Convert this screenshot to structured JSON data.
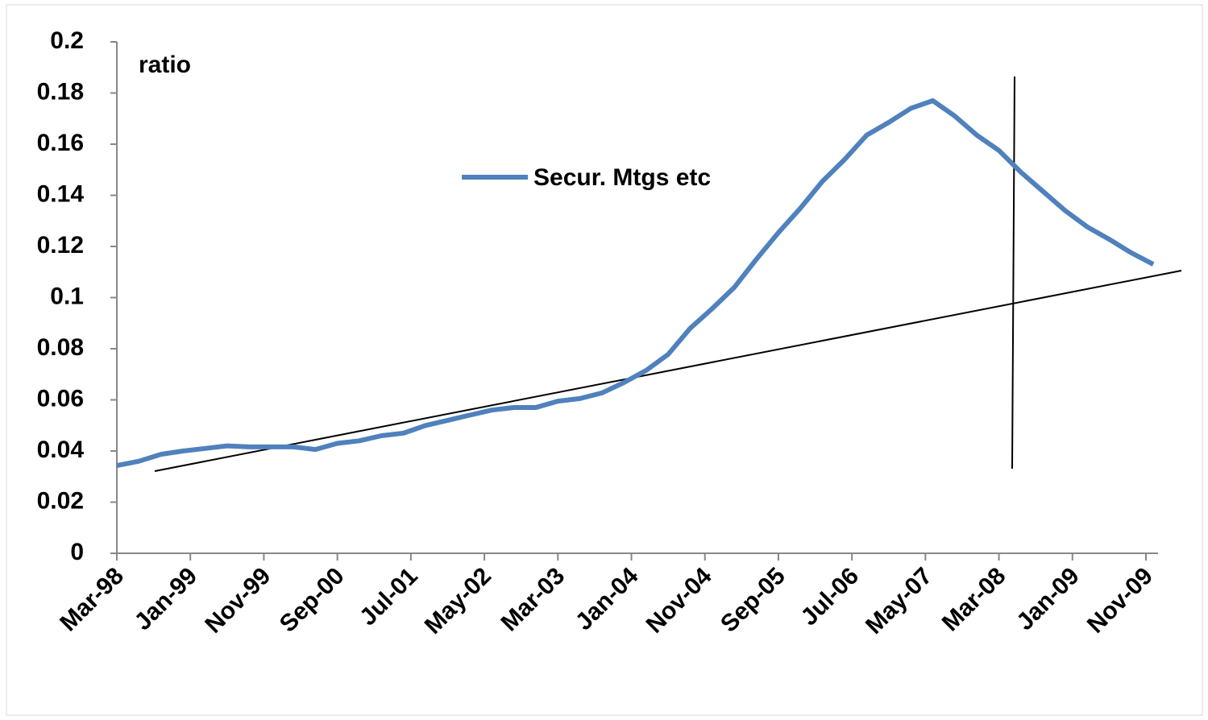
{
  "chart_data": {
    "type": "line",
    "y_label": "ratio",
    "ylim": [
      0,
      0.2
    ],
    "yticks": [
      0,
      0.02,
      0.04,
      0.06,
      0.08,
      0.1,
      0.12,
      0.14,
      0.16,
      0.18,
      0.2
    ],
    "xticks": [
      "Mar-98",
      "Jan-99",
      "Nov-99",
      "Sep-00",
      "Jul-01",
      "May-02",
      "Mar-03",
      "Jan-04",
      "Nov-04",
      "Sep-05",
      "Jul-06",
      "May-07",
      "Mar-08",
      "Jan-09",
      "Nov-09"
    ],
    "x": [
      "Mar-98",
      "Jun-98",
      "Sep-98",
      "Dec-98",
      "Mar-99",
      "Jun-99",
      "Sep-99",
      "Dec-99",
      "Mar-00",
      "Jun-00",
      "Sep-00",
      "Dec-00",
      "Mar-01",
      "Jun-01",
      "Sep-01",
      "Dec-01",
      "Mar-02",
      "Jun-02",
      "Sep-02",
      "Dec-02",
      "Mar-03",
      "Jun-03",
      "Sep-03",
      "Dec-03",
      "Mar-04",
      "Jun-04",
      "Sep-04",
      "Dec-04",
      "Mar-05",
      "Jun-05",
      "Sep-05",
      "Dec-05",
      "Mar-06",
      "Jun-06",
      "Sep-06",
      "Dec-06",
      "Mar-07",
      "Jun-07",
      "Sep-07",
      "Dec-07",
      "Mar-08",
      "Jun-08",
      "Sep-08",
      "Dec-08",
      "Mar-09",
      "Jun-09",
      "Sep-09",
      "Dec-09"
    ],
    "series": [
      {
        "name": "Secur. Mtgs etc",
        "color": "#4f81bd",
        "values": [
          0.0343,
          0.036,
          0.0387,
          0.04,
          0.041,
          0.042,
          0.0416,
          0.0416,
          0.0416,
          0.0406,
          0.043,
          0.044,
          0.046,
          0.047,
          0.05,
          0.052,
          0.054,
          0.056,
          0.057,
          0.057,
          0.0595,
          0.0605,
          0.0627,
          0.0668,
          0.0715,
          0.0778,
          0.088,
          0.0957,
          0.104,
          0.115,
          0.1254,
          0.135,
          0.1455,
          0.154,
          0.1635,
          0.1685,
          0.174,
          0.177,
          0.171,
          0.1635,
          0.1575,
          0.149,
          0.1415,
          0.134,
          0.1277,
          0.1228,
          0.1175,
          0.113
        ]
      }
    ]
  }
}
